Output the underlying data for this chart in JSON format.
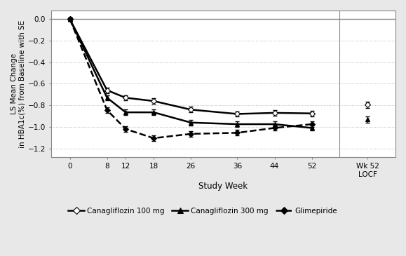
{
  "xlabel": "Study Week",
  "ylabel": "LS Mean Change\nin HBA1c(%) from Baseline with SE",
  "xlim": [
    -4,
    70
  ],
  "ylim": [
    -1.28,
    0.08
  ],
  "yticks": [
    0.0,
    -0.2,
    -0.4,
    -0.6,
    -0.8,
    -1.0,
    -1.2
  ],
  "ytick_labels": [
    "0.0",
    "−0.2",
    "−0.4",
    "−0.6",
    "−0.8",
    "−1.0",
    "−1.2"
  ],
  "xtick_positions": [
    0,
    8,
    12,
    18,
    26,
    36,
    44,
    52
  ],
  "xtick_labels": [
    "0",
    "8",
    "12",
    "18",
    "26",
    "36",
    "44",
    "52"
  ],
  "locf_x": 64,
  "locf_label": "Wk 52\nLOCF",
  "vline_x": 58,
  "series": [
    {
      "name": "Canagliflozin 100 mg",
      "marker": "D",
      "marker_fill": "white",
      "marker_edge": "black",
      "linestyle": "-",
      "linewidth": 1.8,
      "color": "black",
      "x": [
        0,
        8,
        12,
        18,
        26,
        36,
        44,
        52
      ],
      "y": [
        0.0,
        -0.66,
        -0.73,
        -0.76,
        -0.84,
        -0.88,
        -0.87,
        -0.875
      ],
      "yerr": [
        0.015,
        0.025,
        0.025,
        0.025,
        0.025,
        0.025,
        0.025,
        0.025
      ],
      "locf_y": -0.795,
      "locf_yerr": 0.03
    },
    {
      "name": "Canagliflozin 300 mg",
      "marker": "^",
      "marker_fill": "black",
      "marker_edge": "black",
      "linestyle": "-",
      "linewidth": 1.8,
      "color": "black",
      "x": [
        0,
        8,
        12,
        18,
        26,
        36,
        44,
        52
      ],
      "y": [
        0.0,
        -0.73,
        -0.865,
        -0.865,
        -0.96,
        -0.975,
        -0.975,
        -1.01
      ],
      "yerr": [
        0.015,
        0.025,
        0.025,
        0.025,
        0.025,
        0.025,
        0.025,
        0.025
      ],
      "locf_y": -0.93,
      "locf_yerr": 0.03
    },
    {
      "name": "Glimepiride",
      "marker": "D",
      "marker_fill": "black",
      "marker_edge": "black",
      "linestyle": "--",
      "linewidth": 1.8,
      "color": "black",
      "x": [
        0,
        8,
        12,
        18,
        26,
        36,
        44,
        52
      ],
      "y": [
        0.0,
        -0.845,
        -1.02,
        -1.105,
        -1.065,
        -1.055,
        -1.01,
        -0.975
      ],
      "yerr": [
        0.015,
        0.025,
        0.025,
        0.025,
        0.025,
        0.025,
        0.025,
        0.025
      ],
      "locf_y": null,
      "locf_yerr": null
    }
  ],
  "figure_bg": "#e8e8e8",
  "plot_bg": "white",
  "grid_color": "#aaaaaa",
  "zero_line_color": "#888888",
  "spine_color": "#888888",
  "marker_sizes": [
    4,
    5,
    4
  ],
  "legend_marker_sizes": [
    5,
    6,
    5
  ]
}
